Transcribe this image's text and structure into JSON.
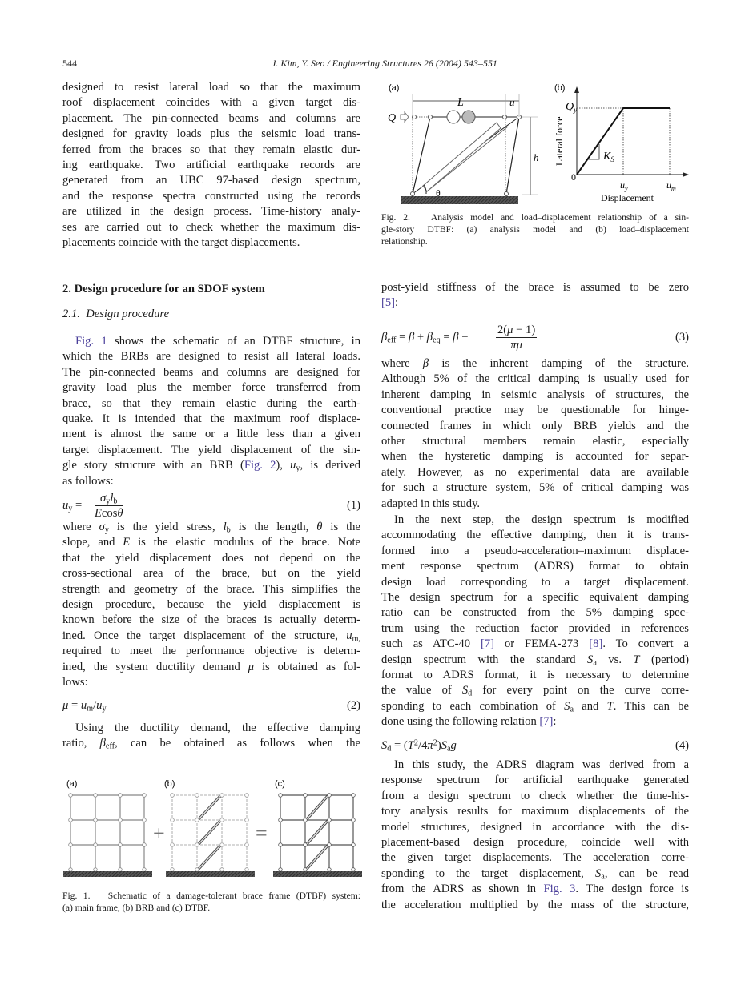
{
  "header": {
    "page_number": "544",
    "running_title": "J. Kim, Y. Seo / Engineering Structures 26 (2004) 543–551"
  },
  "colors": {
    "link": "#4a3f9a",
    "text": "#1a1a1a"
  },
  "left": {
    "p1": [
      "designed to resist lateral load so that the maximum",
      "roof displacement coincides with a given target dis-",
      "placement. The pin-connected beams and columns are",
      "designed for gravity loads plus the seismic load trans-",
      "ferred from the braces so that they remain elastic dur-",
      "ing earthquake. Two artificial earthquake records are",
      "generated from an UBC 97-based design spectrum,",
      "and the response spectra constructed using the records",
      "are utilized in the design process. Time-history analy-",
      "ses are carried out to check whether the maximum dis-",
      "placements coincide with the target displacements."
    ],
    "section_heading": "2.  Design procedure for an SDOF system",
    "subsection_heading": "2.1.  Design procedure",
    "p2": [
      "{{Fig. 1}} shows the schematic of an DTBF structure, in",
      "which the BRBs are designed to resist all lateral loads.",
      "The pin-connected beams and columns are designed for",
      "gravity load plus the member force transferred from",
      "brace, so that they remain elastic during the earth-",
      "quake. It is intended that the maximum roof displace-",
      "ment is almost the same or a little less than a given",
      "target displacement. The yield displacement of the sin-",
      "gle story structure with an BRB ({{Fig. 2}}), *u*_{y}, is derived",
      "as follows:"
    ],
    "eq1": {
      "lhs": "*u*_{y} =",
      "num": "*σ*_{y}*l*_{b}",
      "den": "*E*cos*θ*",
      "no": "(1)"
    },
    "p3": [
      "where *σ*_{y} is the yield stress, *l*_{b} is the length, *θ* is the",
      "slope, and *E* is the elastic modulus of the brace. Note",
      "that the yield displacement does not depend on the",
      "cross-sectional area of the brace, but on the yield",
      "strength and geometry of the brace. This simplifies the",
      "design procedure, because the yield displacement is",
      "known before the size of the braces is actually determ-",
      "ined. Once the target displacement of the structure, *u*_{m,}",
      "required to meet the performance objective is determ-",
      "ined, the system ductility demand *μ* is obtained as fol-",
      "lows:"
    ],
    "eq2": {
      "lhs": "*μ* = *u*_{m}/*u*_{y}",
      "no": "(2)"
    },
    "p4": [
      "Using the ductility demand, the effective damping",
      "ratio, *β*_{eff}, can be obtained as follows when the"
    ],
    "fig1": {
      "panel_labels": [
        "(a)",
        "(b)",
        "(c)"
      ],
      "plus": "+",
      "equals": "=",
      "caption": [
        "Fig. 1.   Schematic of a damage-tolerant brace frame (DTBF) system:",
        "(a) main frame, (b) BRB and (c) DTBF."
      ]
    }
  },
  "right": {
    "fig2": {
      "panel_a_label": "(a)",
      "panel_b_label": "(b)",
      "L": "L",
      "u": "u",
      "h": "h",
      "Q": "Q",
      "theta": "θ",
      "Qy": "Q",
      "Qy_sub": "y",
      "Ks": "K",
      "Ks_sub": "S",
      "origin": "0",
      "uy": "u",
      "uy_sub": "y",
      "um": "u",
      "um_sub": "m",
      "y_axis": "Lateral force",
      "x_axis": "Displacement",
      "caption": [
        "Fig. 2.   Analysis model and load–displacement relationship of a sin-",
        "gle-story DTBF: (a) analysis model and (b) load–displacement",
        "relationship."
      ]
    },
    "pa": [
      "post-yield stiffness of the brace is assumed to be zero",
      "{{[5]}}:"
    ],
    "eq3": {
      "lhs": "*β*_{eff} = *β* + *β*_{eq} = *β* +",
      "num": "2(*μ* − 1)",
      "den": "*πμ*",
      "no": "(3)"
    },
    "pb": [
      "where *β* is the inherent damping of the structure.",
      "Although 5% of the critical damping is usually used for",
      "inherent damping in seismic analysis of structures, the",
      "conventional practice may be questionable for hinge-",
      "connected frames in which only BRB yields and the",
      "other structural members remain elastic, especially",
      "when the hysteretic damping is accounted for separ-",
      "ately. However, as no experimental data are available",
      "for such a structure system, 5% of critical damping was",
      "adapted in this study."
    ],
    "pc": [
      "In the next step, the design spectrum is modified",
      "accommodating the effective damping, then it is trans-",
      "formed into a pseudo-acceleration–maximum displace-",
      "ment response spectrum (ADRS) format to obtain",
      "design load corresponding to a target displacement.",
      "The design spectrum for a specific equivalent damping",
      "ratio can be constructed from the 5% damping spec-",
      "trum using the reduction factor provided in references",
      "such as ATC-40 {{[7]}} or FEMA-273 {{[8]}}. To convert a",
      "design spectrum with the standard *S*_{a} vs. *T* (period)",
      "format to ADRS format, it is necessary to determine",
      "the value of *S*_{d} for every point on the curve corre-",
      "sponding to each combination of *S*_{a} and *T*. This can be",
      "done using the following relation {{[7]}}:"
    ],
    "eq4": {
      "lhs": "*S*_{d} = (*T*^{2}/4*π*^{2})*S*_{a}*g*",
      "no": "(4)"
    },
    "pd": [
      "In this study, the ADRS diagram was derived from a",
      "response spectrum for artificial earthquake generated",
      "from a design spectrum to check whether the time-his-",
      "tory analysis results for maximum displacements of the",
      "model structures, designed in accordance with the dis-",
      "placement-based design procedure, coincide well with",
      "the given target displacements. The acceleration corre-",
      "sponding to the target displacement, *S*_{a}, can be read",
      "from the ADRS as shown in {{Fig. 3}}. The design force is",
      "the acceleration multiplied by the mass of the structure,"
    ]
  }
}
